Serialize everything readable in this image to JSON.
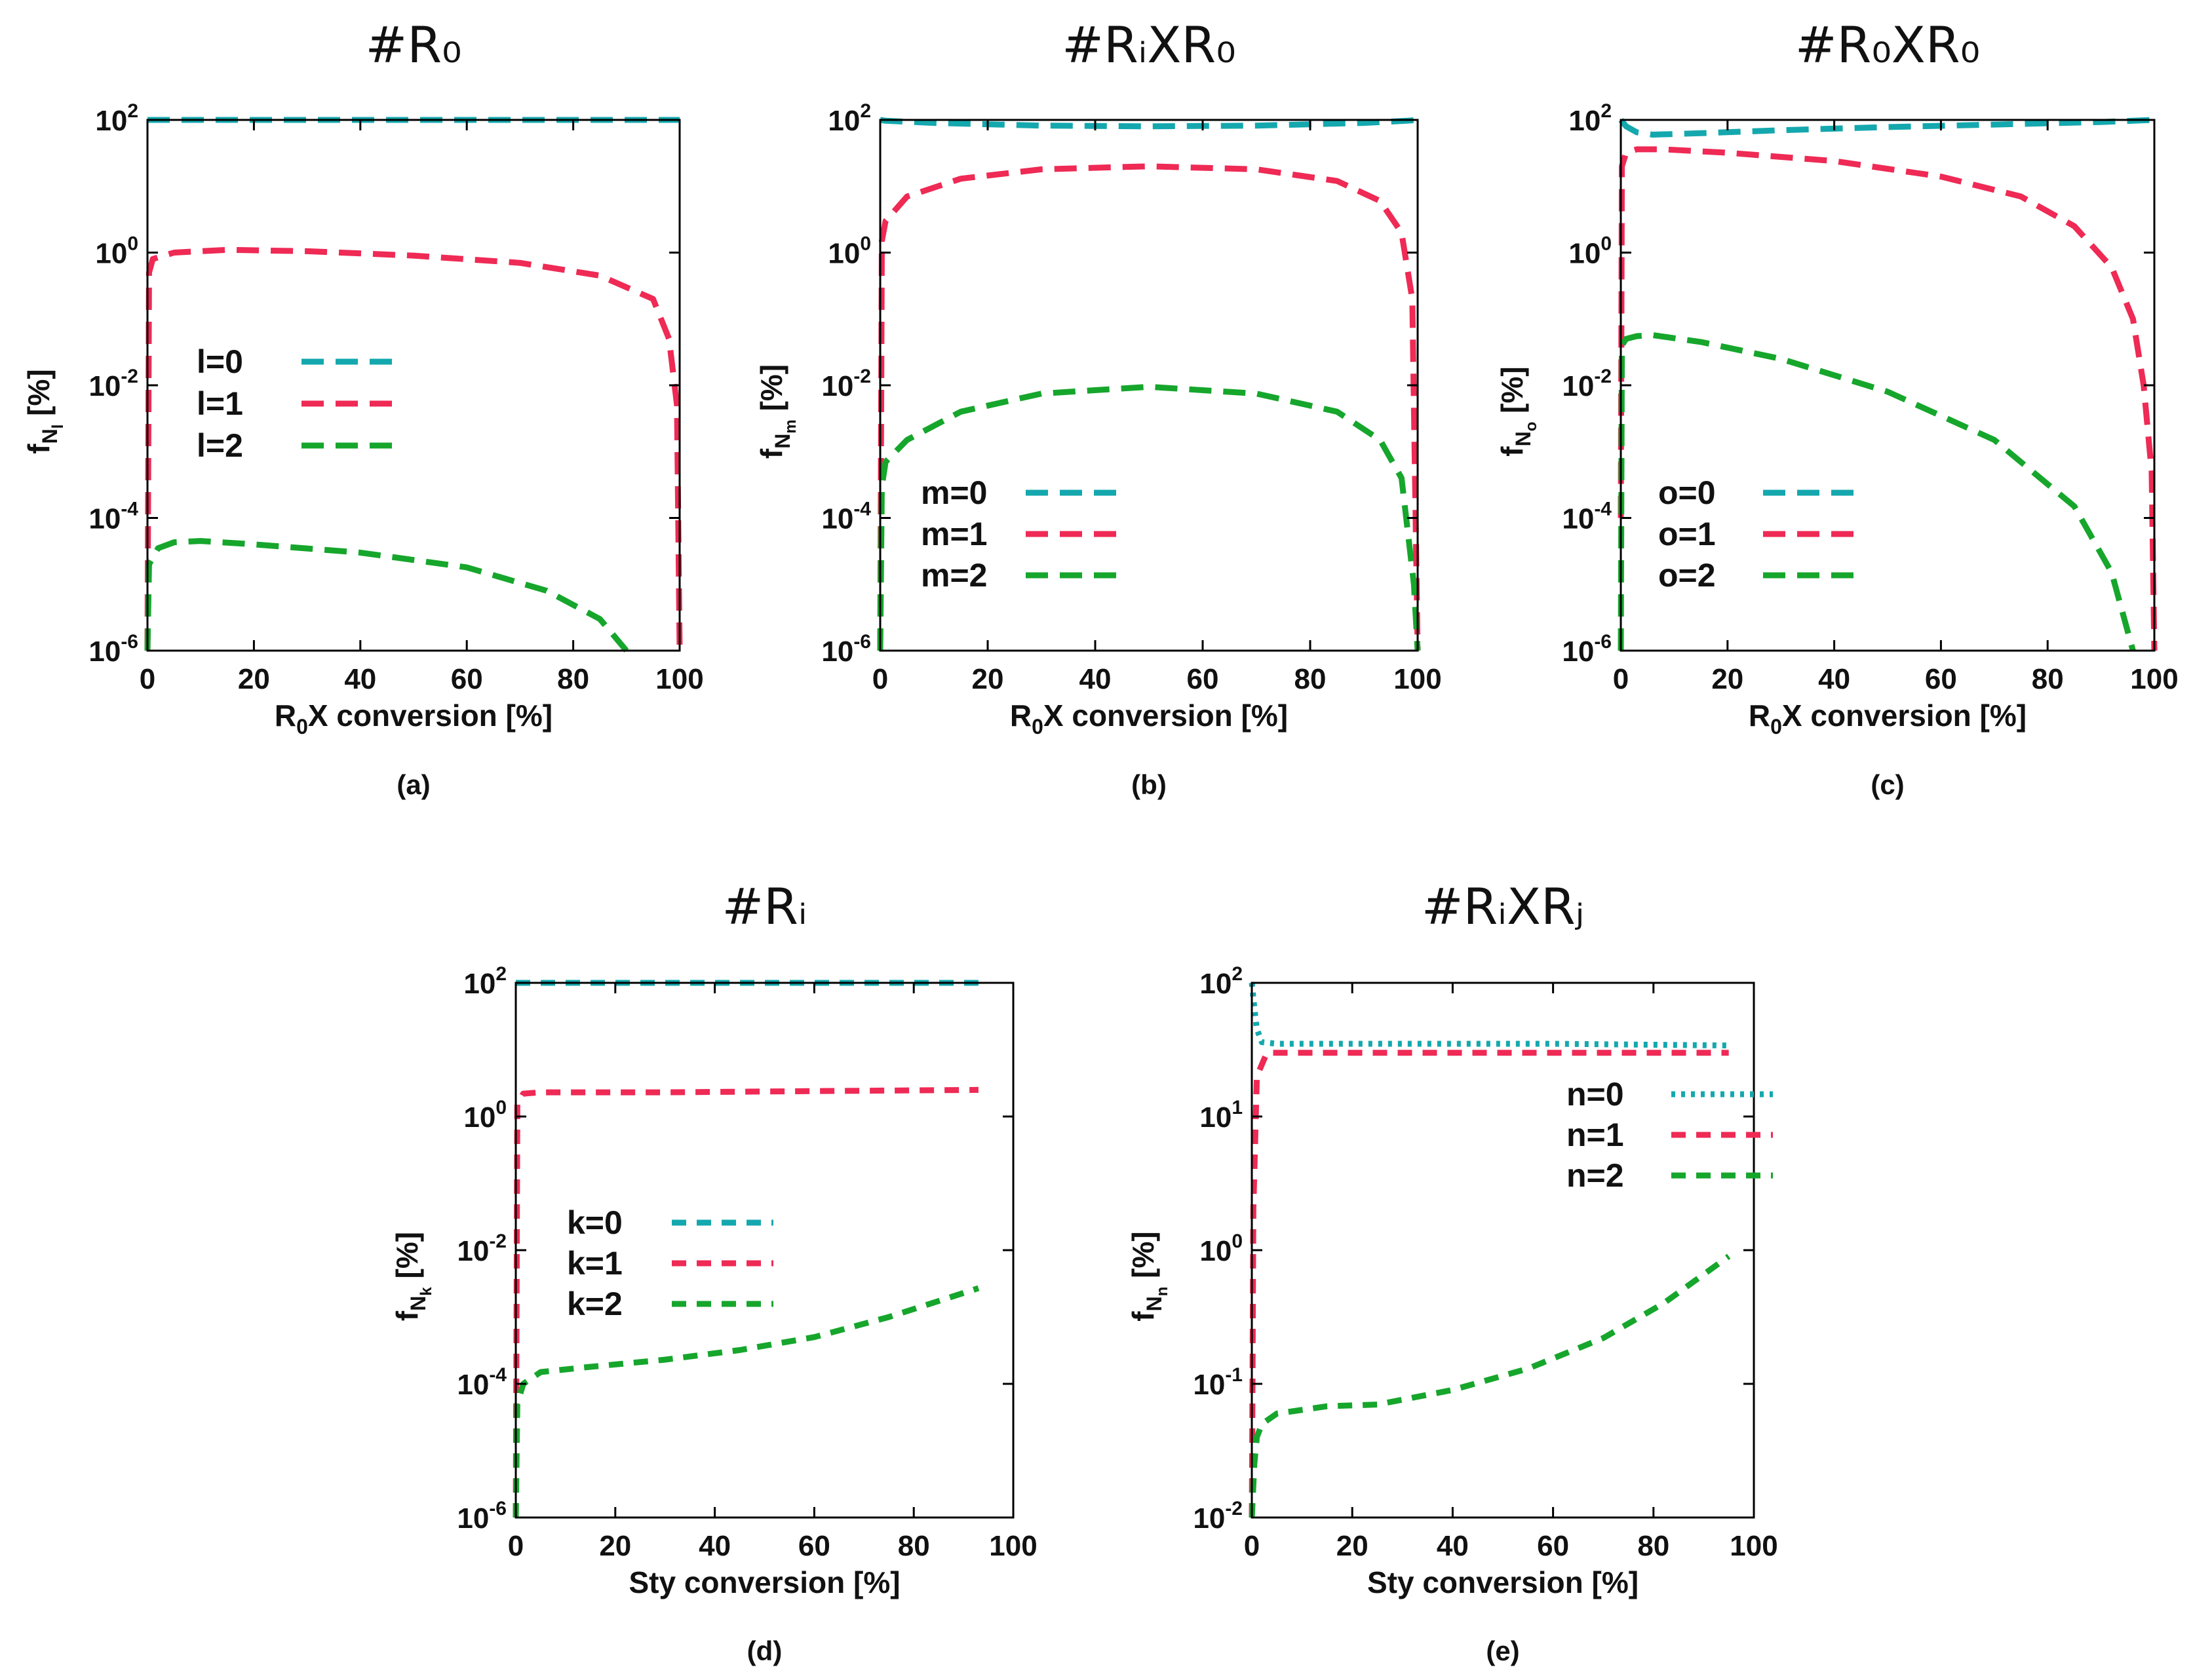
{
  "colors": {
    "series0": "#14a8ae",
    "series1": "#ee2a55",
    "series2": "#16a62c",
    "axes": "#000000"
  },
  "chart_data": [
    {
      "type": "line",
      "panel": "a",
      "title": "#R₀",
      "caption": "(a)",
      "xlabel": "R0X conversion [%]",
      "xlabel_main": "R",
      "xlabel_sub": "0",
      "xlabel_rest": "X conversion [%]",
      "ylabel": "fNl [%]",
      "ylabel_main": "f",
      "ylabel_sub": "N",
      "ylabel_subsub": "l",
      "ylabel_rest": " [%]",
      "xlim": [
        0,
        100
      ],
      "ylim_log10": [
        -6,
        2
      ],
      "yscale": "log",
      "x_ticks": [
        "0",
        "20",
        "40",
        "60",
        "80",
        "100"
      ],
      "y_ticks": [
        "10-6",
        "10-4",
        "10-2",
        "100",
        "102"
      ],
      "series": [
        {
          "name": "l=0",
          "x": [
            0,
            10,
            30,
            50,
            70,
            90,
            98,
            100
          ],
          "y": [
            100,
            100,
            100,
            100,
            100,
            100,
            100,
            100
          ]
        },
        {
          "name": "l=1",
          "x": [
            0,
            0.3,
            1,
            5,
            15,
            30,
            50,
            70,
            85,
            95,
            98,
            99.5,
            100
          ],
          "y": [
            1e-06,
            0.5,
            0.8,
            1.0,
            1.1,
            1.05,
            0.9,
            0.7,
            0.45,
            0.2,
            0.05,
            0.005,
            1e-06
          ]
        },
        {
          "name": "l=2",
          "x": [
            0,
            0.3,
            2,
            5,
            10,
            20,
            40,
            60,
            75,
            85,
            90
          ],
          "y": [
            1e-06,
            2e-05,
            3.5e-05,
            4.3e-05,
            4.5e-05,
            4e-05,
            3e-05,
            1.8e-05,
            8e-06,
            3e-06,
            1e-06
          ]
        }
      ]
    },
    {
      "type": "line",
      "panel": "b",
      "title": "#RᵢXR₀",
      "caption": "(b)",
      "xlabel": "R0X conversion [%]",
      "xlabel_main": "R",
      "xlabel_sub": "0",
      "xlabel_rest": "X conversion [%]",
      "ylabel": "fNm [%]",
      "ylabel_main": "f",
      "ylabel_sub": "N",
      "ylabel_subsub": "m",
      "ylabel_rest": " [%]",
      "xlim": [
        0,
        100
      ],
      "ylim_log10": [
        -6,
        2
      ],
      "yscale": "log",
      "x_ticks": [
        "0",
        "20",
        "40",
        "60",
        "80",
        "100"
      ],
      "y_ticks": [
        "10-6",
        "10-4",
        "10-2",
        "100",
        "102"
      ],
      "series": [
        {
          "name": "m=0",
          "x": [
            0,
            1,
            10,
            30,
            50,
            70,
            90,
            98,
            100
          ],
          "y": [
            100,
            97,
            90,
            82,
            80,
            82,
            90,
            97,
            100
          ]
        },
        {
          "name": "m=1",
          "x": [
            0,
            0.3,
            1,
            5,
            15,
            30,
            50,
            70,
            85,
            93,
            97,
            99,
            100
          ],
          "y": [
            1e-06,
            1.5,
            3,
            7,
            13,
            18,
            20,
            18,
            12,
            6,
            2,
            0.2,
            1e-06
          ]
        },
        {
          "name": "m=2",
          "x": [
            0,
            0.3,
            1,
            5,
            15,
            30,
            50,
            70,
            85,
            93,
            97,
            99.3,
            100
          ],
          "y": [
            1e-06,
            0.0003,
            0.0007,
            0.0015,
            0.004,
            0.0075,
            0.0095,
            0.0075,
            0.004,
            0.0015,
            0.0004,
            1e-05,
            1e-06
          ]
        }
      ]
    },
    {
      "type": "line",
      "panel": "c",
      "title": "#R₀XR₀",
      "caption": "(c)",
      "xlabel": "R0X conversion [%]",
      "xlabel_main": "R",
      "xlabel_sub": "0",
      "xlabel_rest": "X conversion [%]",
      "ylabel": "fNo [%]",
      "ylabel_main": "f",
      "ylabel_sub": "N",
      "ylabel_subsub": "o",
      "ylabel_rest": " [%]",
      "xlim": [
        0,
        100
      ],
      "ylim_log10": [
        -6,
        2
      ],
      "yscale": "log",
      "x_ticks": [
        "0",
        "20",
        "40",
        "60",
        "80",
        "100"
      ],
      "y_ticks": [
        "10-6",
        "10-4",
        "10-2",
        "100",
        "102"
      ],
      "series": [
        {
          "name": "o=0",
          "x": [
            0,
            1,
            3,
            6,
            15,
            30,
            50,
            70,
            90,
            100
          ],
          "y": [
            100,
            80,
            65,
            60,
            63,
            70,
            78,
            85,
            93,
            100
          ]
        },
        {
          "name": "o=1",
          "x": [
            0,
            0.2,
            1,
            3,
            8,
            20,
            40,
            60,
            75,
            85,
            92,
            96,
            98,
            99.5,
            100
          ],
          "y": [
            0.0001,
            20,
            32,
            36,
            36,
            32,
            24,
            14,
            7,
            2.5,
            0.6,
            0.1,
            0.01,
            0.0005,
            1e-06
          ]
        },
        {
          "name": "o=2",
          "x": [
            0,
            0.2,
            1,
            3,
            6,
            15,
            30,
            50,
            70,
            85,
            92,
            96
          ],
          "y": [
            1e-06,
            0.04,
            0.05,
            0.055,
            0.057,
            0.045,
            0.025,
            0.008,
            0.0015,
            0.00015,
            1.5e-05,
            1e-06
          ]
        }
      ]
    },
    {
      "type": "line",
      "panel": "d",
      "title": "#Rᵢ",
      "caption": "(d)",
      "xlabel": "Sty conversion [%]",
      "ylabel": "fNk [%]",
      "ylabel_main": "f",
      "ylabel_sub": "N",
      "ylabel_subsub": "k",
      "ylabel_rest": " [%]",
      "xlim": [
        0,
        100
      ],
      "ylim_log10": [
        -6,
        2
      ],
      "yscale": "log",
      "x_ticks": [
        "0",
        "20",
        "40",
        "60",
        "80",
        "100"
      ],
      "y_ticks": [
        "10-6",
        "10-4",
        "10-2",
        "100",
        "102"
      ],
      "series": [
        {
          "name": "k=0",
          "x": [
            0,
            10,
            30,
            50,
            70,
            93
          ],
          "y": [
            100,
            100,
            100,
            100,
            100,
            100
          ]
        },
        {
          "name": "k=1",
          "x": [
            0,
            0.3,
            1.5,
            5,
            30,
            60,
            93
          ],
          "y": [
            1e-06,
            1.5,
            2.2,
            2.3,
            2.3,
            2.4,
            2.5
          ]
        },
        {
          "name": "k=2",
          "x": [
            0,
            0.3,
            1.5,
            5,
            15,
            30,
            45,
            60,
            75,
            93
          ],
          "y": [
            1e-06,
            5e-05,
            0.0001,
            0.00015,
            0.00018,
            0.00023,
            0.00032,
            0.0005,
            0.001,
            0.0027
          ]
        }
      ]
    },
    {
      "type": "line",
      "panel": "e",
      "title": "#RᵢXRⱼ",
      "caption": "(e)",
      "xlabel": "Sty conversion [%]",
      "ylabel": "fNn [%]",
      "ylabel_main": "f",
      "ylabel_sub": "N",
      "ylabel_subsub": "n",
      "ylabel_rest": " [%]",
      "xlim": [
        0,
        100
      ],
      "ylim_log10": [
        -2,
        2
      ],
      "yscale": "log",
      "x_ticks": [
        "0",
        "20",
        "40",
        "60",
        "80",
        "100"
      ],
      "y_ticks": [
        "10-2",
        "10-1",
        "100",
        "101",
        "102"
      ],
      "series": [
        {
          "name": "n=0",
          "x": [
            0,
            0.5,
            1,
            2,
            5,
            30,
            60,
            95
          ],
          "y": [
            100,
            65,
            45,
            36,
            35,
            35,
            35,
            34
          ]
        },
        {
          "name": "n=1",
          "x": [
            0,
            0.3,
            1,
            3,
            30,
            60,
            95
          ],
          "y": [
            0.01,
            2,
            20,
            30,
            30,
            30,
            30
          ]
        },
        {
          "name": "n=2",
          "x": [
            0,
            0.5,
            1,
            2,
            5,
            15,
            25,
            40,
            55,
            70,
            82,
            95
          ],
          "y": [
            0.01,
            0.025,
            0.04,
            0.05,
            0.06,
            0.068,
            0.07,
            0.09,
            0.13,
            0.22,
            0.4,
            0.9
          ]
        }
      ]
    }
  ]
}
